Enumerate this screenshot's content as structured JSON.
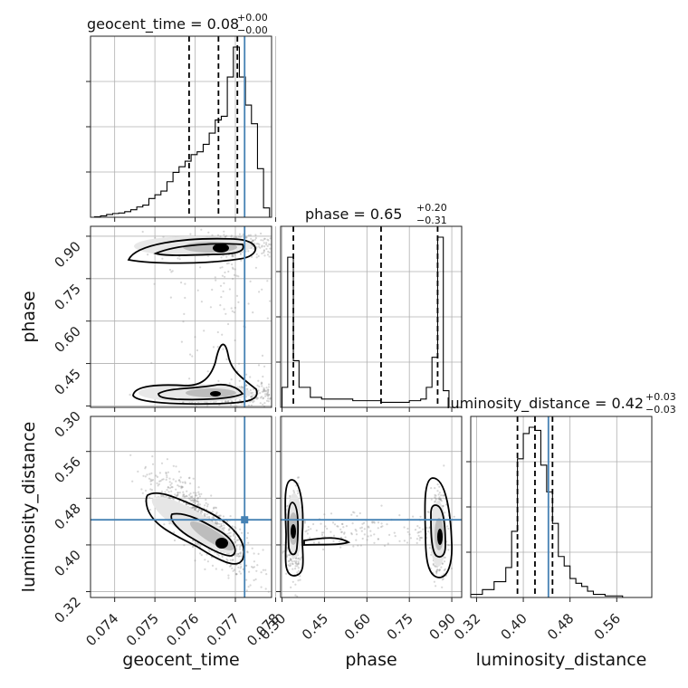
{
  "figure": {
    "titles": {
      "geocent_time": {
        "name": "geocent_time",
        "value": "0.08",
        "plus": "+0.00",
        "minus": "−0.00"
      },
      "phase": {
        "name": "phase",
        "value": "0.65",
        "plus": "+0.20",
        "minus": "−0.31"
      },
      "luminosity_distance": {
        "name": "luminosity_distance",
        "value": "0.42",
        "plus": "+0.03",
        "minus": "−0.03"
      }
    },
    "axis_labels": {
      "x": [
        "geocent_time",
        "phase",
        "luminosity_distance"
      ],
      "y": [
        "phase",
        "luminosity_distance"
      ]
    },
    "colors": {
      "truth": "#4682b4",
      "hist": "#000000",
      "points": "#8c8c8c"
    }
  },
  "chart_data": {
    "type": "corner",
    "parameters": [
      "geocent_time",
      "phase",
      "luminosity_distance"
    ],
    "truths": {
      "geocent_time": 0.07723,
      "phase": 0.882,
      "luminosity_distance": 0.443
    },
    "quantiles": {
      "geocent_time": [
        0.07585,
        0.07658,
        0.07705
      ],
      "phase": [
        0.34,
        0.65,
        0.85
      ],
      "luminosity_distance": [
        0.39,
        0.42,
        0.45
      ]
    },
    "ranges": {
      "geocent_time": [
        0.0734,
        0.0779
      ],
      "phase": [
        0.295,
        0.935
      ],
      "luminosity_distance": [
        0.31,
        0.62
      ]
    },
    "ticks": {
      "geocent_time": [
        "0.074",
        "0.075",
        "0.076",
        "0.077",
        "0.078"
      ],
      "phase": [
        "0.30",
        "0.45",
        "0.60",
        "0.75",
        "0.90"
      ],
      "luminosity_distance": [
        "0.32",
        "0.40",
        "0.48",
        "0.56"
      ]
    },
    "histograms": {
      "geocent_time": {
        "edges": [
          0.0735,
          0.07365,
          0.0738,
          0.07395,
          0.0741,
          0.07425,
          0.0744,
          0.07455,
          0.0747,
          0.07485,
          0.075,
          0.07515,
          0.0753,
          0.07545,
          0.0756,
          0.07575,
          0.0759,
          0.07605,
          0.0762,
          0.07635,
          0.0765,
          0.07665,
          0.0768,
          0.07695,
          0.0771,
          0.07725,
          0.0774,
          0.07755,
          0.0777,
          0.07785
        ],
        "counts": [
          0.5,
          1.5,
          3,
          4,
          4.5,
          6,
          8,
          11,
          13,
          20,
          24,
          28,
          38,
          48,
          54,
          60,
          67,
          70,
          78,
          90,
          104,
          108,
          150,
          182,
          150,
          120,
          100,
          52,
          10
        ]
      },
      "phase": {
        "edges": [
          0.3,
          0.32,
          0.34,
          0.36,
          0.4,
          0.44,
          0.5,
          0.55,
          0.6,
          0.65,
          0.7,
          0.75,
          0.77,
          0.79,
          0.81,
          0.83,
          0.85,
          0.87,
          0.89
        ],
        "counts": [
          12,
          90,
          28,
          12,
          6,
          5,
          5,
          4,
          4,
          3,
          3,
          4,
          4,
          5,
          12,
          30,
          102,
          10
        ]
      },
      "luminosity_distance": {
        "edges": [
          0.31,
          0.33,
          0.35,
          0.37,
          0.38,
          0.39,
          0.4,
          0.41,
          0.42,
          0.43,
          0.44,
          0.45,
          0.46,
          0.47,
          0.48,
          0.49,
          0.5,
          0.51,
          0.52,
          0.54,
          0.57
        ],
        "counts": [
          2,
          5,
          10,
          19,
          42,
          88,
          104,
          108,
          106,
          84,
          67,
          47,
          26,
          20,
          12,
          9,
          7,
          4,
          2,
          1
        ]
      }
    }
  }
}
